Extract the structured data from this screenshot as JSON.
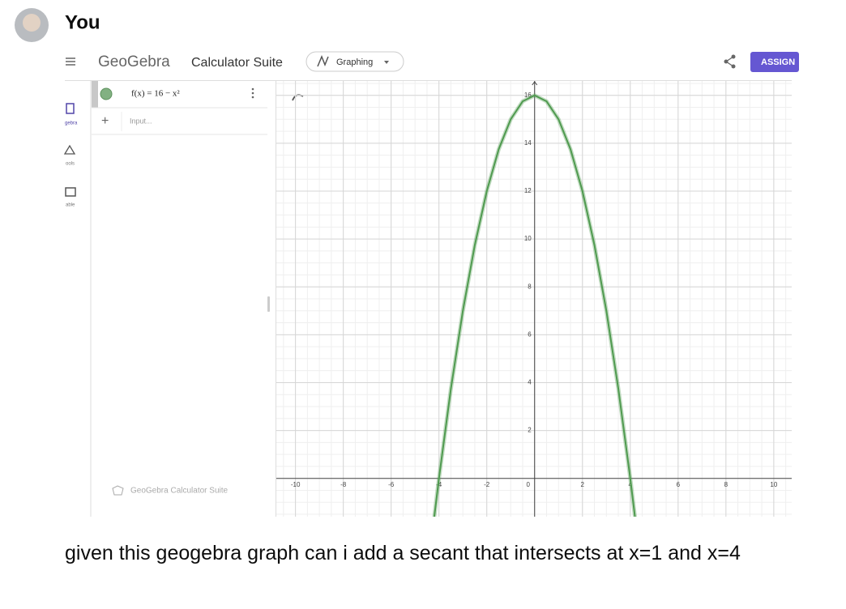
{
  "user": {
    "name": "You"
  },
  "app": {
    "logo": "GeoGebra",
    "suite": "Calculator Suite",
    "mode": "Graphing",
    "assign": "ASSIGN"
  },
  "sidebar": {
    "items": [
      "gebra",
      "ools",
      "able"
    ]
  },
  "algebra": {
    "entry": "f(x) = 16 − x²",
    "input": "Input...",
    "footer": "GeoGebra Calculator Suite"
  },
  "graph": {
    "type": "line",
    "color": "#4f9a4f",
    "grid": true,
    "xlim": [
      -10.8,
      10.75
    ],
    "ylim": [
      -1.6,
      16.6
    ],
    "xticks": [
      -10,
      -8,
      -6,
      -4,
      -2,
      0,
      2,
      4,
      6,
      8,
      10
    ],
    "yticks": [
      2,
      4,
      6,
      8,
      10,
      12,
      14,
      16
    ],
    "curve": {
      "x": [
        -4.2,
        -4,
        -3.5,
        -3,
        -2.5,
        -2,
        -1.5,
        -1,
        -0.5,
        0,
        0.5,
        1,
        1.5,
        2,
        2.5,
        3,
        3.5,
        4,
        4.2
      ],
      "y": [
        -1.64,
        0,
        3.75,
        7,
        9.75,
        12,
        13.75,
        15,
        15.75,
        16,
        15.75,
        15,
        13.75,
        12,
        9.75,
        7,
        3.75,
        0,
        -1.64
      ]
    }
  },
  "message": {
    "text": "given this geogebra graph can i add a secant that intersects at x=1 and x=4"
  }
}
